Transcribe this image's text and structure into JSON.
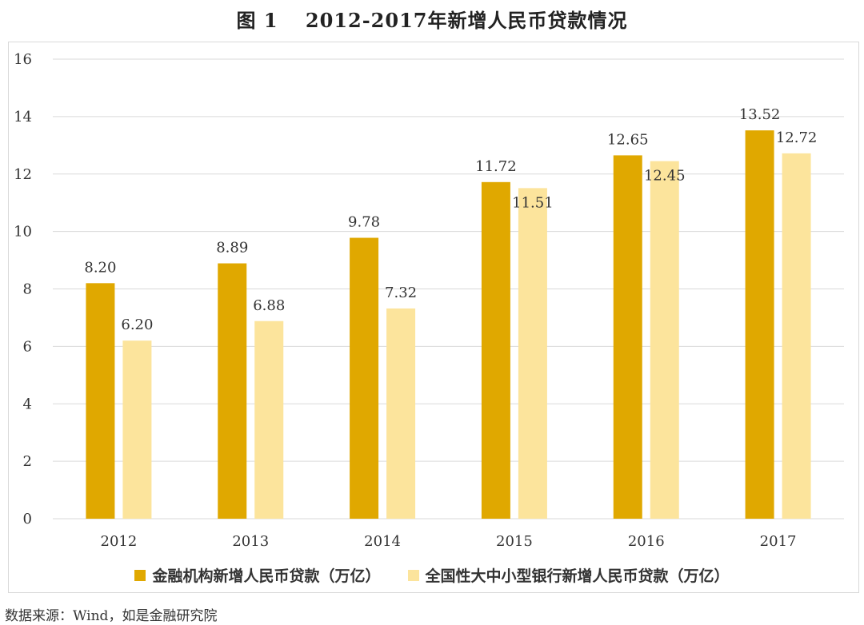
{
  "page": {
    "title": "图 1　 2012-2017年新增人民币贷款情况",
    "source": "数据来源：Wind，如是金融研究院"
  },
  "colors": {
    "series1": "#E0A800",
    "series2": "#FCE49C",
    "grid": "#d9d9d9",
    "text": "#333333"
  },
  "chart_data": {
    "type": "bar",
    "title": "图 1　 2012-2017年新增人民币贷款情况",
    "categories": [
      "2012",
      "2013",
      "2014",
      "2015",
      "2016",
      "2017"
    ],
    "series": [
      {
        "name": "金融机构新增人民币贷款（万亿）",
        "values": [
          8.2,
          8.89,
          9.78,
          11.72,
          12.65,
          13.52
        ],
        "labels": [
          "8.20",
          "8.89",
          "9.78",
          "11.72",
          "12.65",
          "13.52"
        ]
      },
      {
        "name": "全国性大中小型银行新增人民币贷款（万亿）",
        "values": [
          6.2,
          6.88,
          7.32,
          11.51,
          12.45,
          12.72
        ],
        "labels": [
          "6.20",
          "6.88",
          "7.32",
          "11.51",
          "12.45",
          "12.72"
        ]
      }
    ],
    "xlabel": "",
    "ylabel": "",
    "ylim": [
      0,
      16
    ],
    "yticks": [
      "0",
      "2",
      "4",
      "6",
      "8",
      "10",
      "12",
      "14",
      "16"
    ],
    "grid": true,
    "legend_position": "bottom"
  }
}
